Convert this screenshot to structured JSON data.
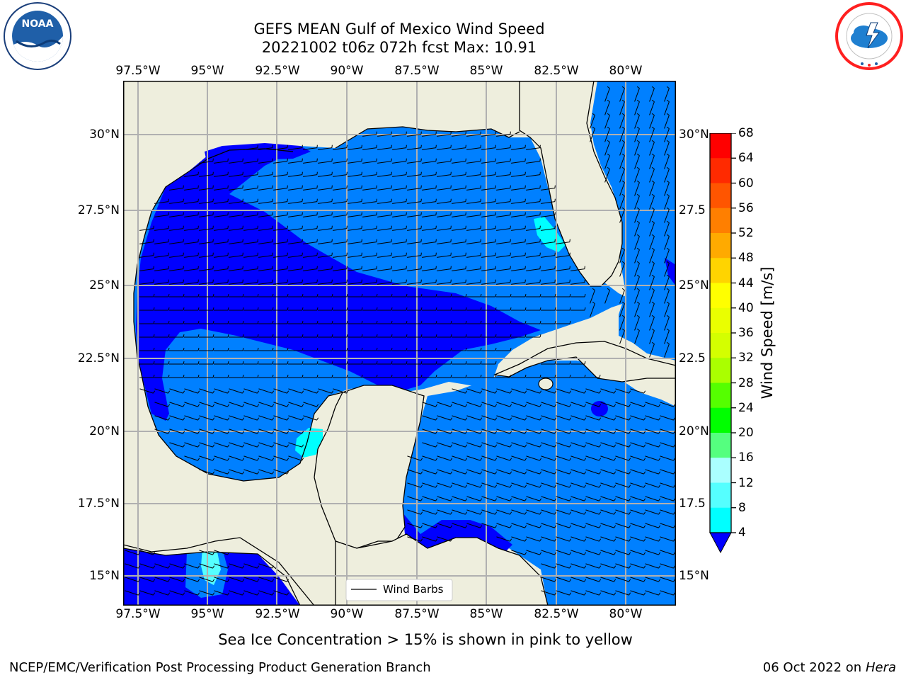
{
  "title_line1": "GEFS MEAN Gulf of Mexico Wind Speed",
  "title_line2": "20221002 t06z 072h fcst   Max: 10.91",
  "lon_ticks": [
    "97.5°W",
    "95°W",
    "92.5°W",
    "90°W",
    "87.5°W",
    "85°W",
    "82.5°W",
    "80°W"
  ],
  "lat_ticks_left": [
    "30°N",
    "27.5°N",
    "25°N",
    "22.5°N",
    "20°N",
    "17.5°N",
    "15°N"
  ],
  "lat_ticks_right": [
    "30°N",
    "27.5",
    "25°N",
    "22.5",
    "20°N",
    "17.5",
    "15°N"
  ],
  "legend_label": "Wind Barbs",
  "colorbar": {
    "label": "Wind Speed [m/s]",
    "ticks": [
      "68",
      "64",
      "60",
      "56",
      "52",
      "48",
      "44",
      "40",
      "36",
      "32",
      "28",
      "24",
      "20",
      "16",
      "12",
      "8",
      "4"
    ],
    "colors": [
      "#ff0000",
      "#ff2a00",
      "#ff5500",
      "#ff7f00",
      "#ffaa00",
      "#ffd400",
      "#ffff00",
      "#eaff00",
      "#d4ff00",
      "#aaff00",
      "#55ff00",
      "#00ff00",
      "#55ff7f",
      "#aaffff",
      "#55ffff",
      "#00ffff",
      "#0080ff"
    ],
    "under_color": "#0000ff"
  },
  "colors": {
    "land": "#eeeedd",
    "speed_4_8": "#0080ff",
    "speed_lt4": "#0000ff",
    "speed_8_12": "#00ffff",
    "speed_12_16": "#55ffff"
  },
  "caption": "Sea Ice Concentration > 15% is shown in pink to yellow",
  "footer_left": "NCEP/EMC/Verification Post Processing Product Generation Branch",
  "footer_right_date": "06 Oct 2022 on ",
  "footer_right_machine": "Hera",
  "logos": [
    "noaa-logo",
    "nws-logo"
  ]
}
